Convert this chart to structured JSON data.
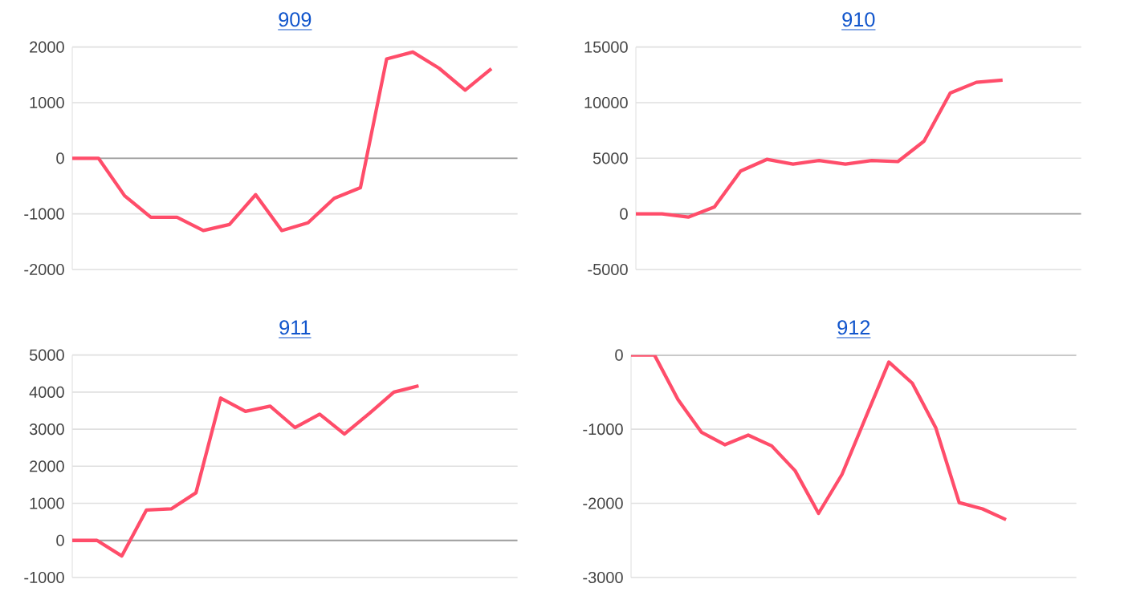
{
  "chart_data": [
    {
      "type": "line",
      "title": "909",
      "categories": [
        null,
        null,
        null,
        null,
        null,
        null,
        null,
        null,
        null,
        null,
        null,
        null,
        null,
        null,
        null,
        null,
        null,
        null
      ],
      "series": [
        {
          "color": "#ff4d6a",
          "values": [
            0,
            0,
            -675,
            -1060,
            -1060,
            -1300,
            -1190,
            -655,
            -1300,
            -1160,
            -720,
            -530,
            1785,
            1910,
            1620,
            1225,
            1610,
            null
          ]
        }
      ],
      "ylim": [
        -2000,
        2000
      ],
      "yticks": [
        -2000,
        -1000,
        0,
        1000,
        2000
      ],
      "grid": "y",
      "tick_labels": "y",
      "ref_lines": [
        {
          "axis": "y",
          "value": 0,
          "color": "#9e9e9e"
        }
      ]
    },
    {
      "type": "line",
      "title": "910",
      "categories": [
        null,
        null,
        null,
        null,
        null,
        null,
        null,
        null,
        null,
        null,
        null,
        null,
        null,
        null,
        null,
        null,
        null,
        null
      ],
      "series": [
        {
          "color": "#ff4d6a",
          "values": [
            0,
            0,
            -290,
            625,
            3850,
            4900,
            4470,
            4800,
            4470,
            4800,
            4700,
            6540,
            10870,
            11830,
            12020,
            null,
            null,
            null
          ]
        }
      ],
      "ylim": [
        -5000,
        15000
      ],
      "yticks": [
        -5000,
        0,
        5000,
        10000,
        15000
      ],
      "grid": "y",
      "tick_labels": "y",
      "ref_lines": [
        {
          "axis": "y",
          "value": 0,
          "color": "#9e9e9e"
        }
      ]
    },
    {
      "type": "line",
      "title": "911",
      "categories": [
        null,
        null,
        null,
        null,
        null,
        null,
        null,
        null,
        null,
        null,
        null,
        null,
        null,
        null,
        null,
        null,
        null,
        null,
        null
      ],
      "series": [
        {
          "color": "#ff4d6a",
          "values": [
            0,
            0,
            -420,
            820,
            850,
            1285,
            3840,
            3480,
            3620,
            3045,
            3405,
            2870,
            3420,
            4000,
            4170,
            null,
            null,
            null,
            null
          ]
        }
      ],
      "ylim": [
        -1000,
        5000
      ],
      "yticks": [
        -1000,
        0,
        1000,
        2000,
        3000,
        4000,
        5000
      ],
      "grid": "y",
      "tick_labels": "y",
      "ref_lines": [
        {
          "axis": "y",
          "value": 0,
          "color": "#9e9e9e"
        }
      ]
    },
    {
      "type": "line",
      "title": "912",
      "categories": [
        null,
        null,
        null,
        null,
        null,
        null,
        null,
        null,
        null,
        null,
        null,
        null,
        null,
        null,
        null,
        null,
        null,
        null,
        null,
        null
      ],
      "series": [
        {
          "color": "#ff4d6a",
          "values": [
            0,
            0,
            -600,
            -1040,
            -1210,
            -1080,
            -1225,
            -1560,
            -2135,
            -1610,
            -850,
            -95,
            -380,
            -980,
            -1990,
            -2075,
            -2220,
            null,
            null,
            null
          ]
        }
      ],
      "ylim": [
        -3000,
        0
      ],
      "yticks": [
        -3000,
        -2000,
        -1000,
        0
      ],
      "grid": "y",
      "tick_labels": "y",
      "ref_lines": [
        {
          "axis": "y",
          "value": 0,
          "color": "#9e9e9e"
        }
      ]
    }
  ]
}
